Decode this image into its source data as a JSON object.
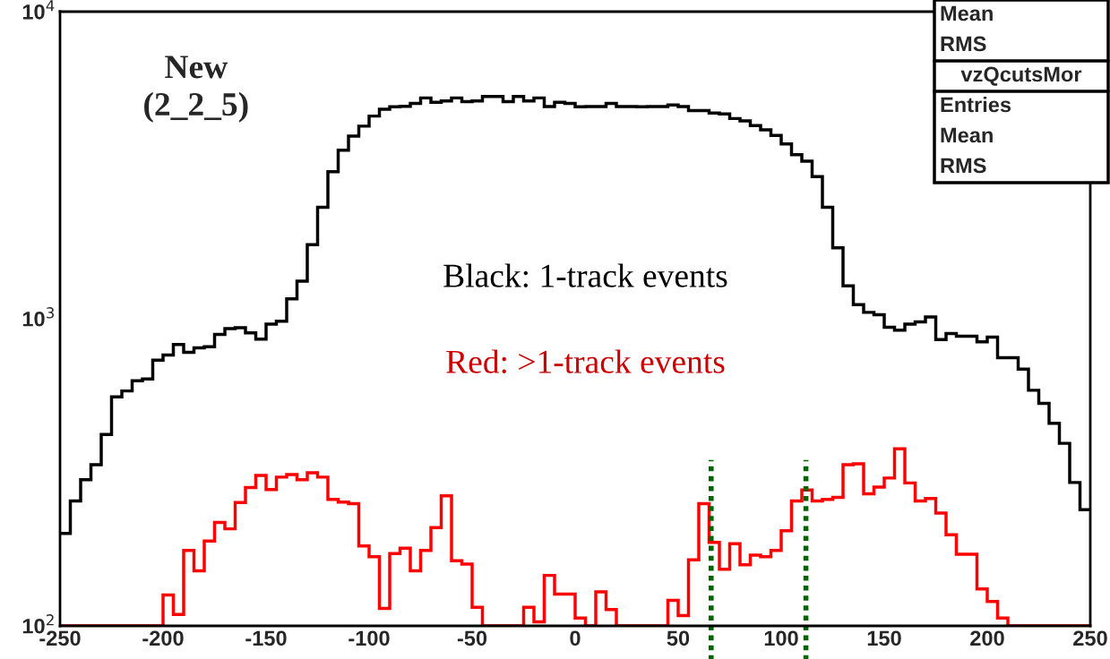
{
  "chart_data": {
    "type": "histogram",
    "bins": [
      -250,
      -245,
      -240,
      -235,
      -230,
      -225,
      -220,
      -215,
      -210,
      -205,
      -200,
      -195,
      -190,
      -185,
      -180,
      -175,
      -170,
      -165,
      -160,
      -155,
      -150,
      -145,
      -140,
      -135,
      -130,
      -125,
      -120,
      -115,
      -110,
      -105,
      -100,
      -95,
      -90,
      -85,
      -80,
      -75,
      -70,
      -65,
      -60,
      -55,
      -50,
      -45,
      -40,
      -35,
      -30,
      -25,
      -20,
      -15,
      -10,
      -5,
      0,
      5,
      10,
      15,
      20,
      25,
      30,
      35,
      40,
      45,
      50,
      55,
      60,
      65,
      70,
      75,
      80,
      85,
      90,
      95,
      100,
      105,
      110,
      115,
      120,
      125,
      130,
      135,
      140,
      145,
      150,
      155,
      160,
      165,
      170,
      175,
      180,
      185,
      190,
      195,
      200,
      205,
      210,
      215,
      220,
      225,
      230,
      235,
      240,
      245,
      250
    ],
    "series": [
      {
        "color": "#000000",
        "values": [
          200,
          255,
          299,
          335,
          420,
          557,
          582,
          628,
          637,
          733,
          762,
          824,
          777,
          804,
          811,
          889,
          929,
          935,
          899,
          859,
          961,
          982,
          1161,
          1325,
          1742,
          2307,
          3010,
          3540,
          3936,
          4238,
          4571,
          4808,
          4898,
          4920,
          5023,
          5236,
          5070,
          5117,
          5236,
          5093,
          5117,
          5297,
          5297,
          5093,
          5297,
          5117,
          5236,
          4909,
          5070,
          5023,
          4898,
          4909,
          4909,
          5023,
          4909,
          4909,
          4898,
          4909,
          4909,
          4966,
          4909,
          4764,
          4764,
          4677,
          4645,
          4487,
          4406,
          4256,
          4121,
          3954,
          3707,
          3420,
          3258,
          2904,
          2307,
          1702,
          1280,
          1112,
          1049,
          1030,
          938,
          918,
          961,
          977,
          1014,
          855,
          895,
          877,
          877,
          841,
          871,
          747,
          747,
          685,
          585,
          530,
          457,
          393,
          293,
          239
        ]
      },
      {
        "color": "#ff0000",
        "values": [
          100,
          100,
          100,
          100,
          100,
          100,
          100,
          100,
          100,
          100,
          126,
          109,
          176,
          151,
          189,
          217,
          207,
          252,
          282,
          309,
          278,
          305,
          311,
          299,
          315,
          305,
          258,
          253,
          250,
          182,
          168,
          114,
          172,
          179,
          151,
          176,
          209,
          265,
          163,
          159,
          115,
          100,
          100,
          100,
          100,
          115,
          103,
          146,
          127,
          127,
          106,
          100,
          129,
          113,
          100,
          100,
          100,
          100,
          100,
          121,
          108,
          164,
          250,
          187,
          153,
          185,
          158,
          170,
          168,
          176,
          204,
          255,
          277,
          255,
          258,
          262,
          335,
          337,
          269,
          283,
          303,
          377,
          292,
          255,
          260,
          233,
          198,
          171,
          171,
          132,
          120,
          106,
          100,
          100,
          100,
          100,
          100,
          100,
          100,
          100
        ]
      }
    ],
    "xlim": [
      -250,
      250
    ],
    "xticks": [
      -250,
      -200,
      -150,
      -100,
      -50,
      0,
      50,
      100,
      150,
      200,
      250
    ],
    "log": true,
    "ylim": [
      100,
      10000
    ],
    "yticks": [
      {
        "value": 100,
        "label": "10$^{2}$"
      },
      {
        "value": 1000,
        "label": "10$^{3}$"
      },
      {
        "value": 10000,
        "label": "10$^{4}$"
      }
    ],
    "ref_lines": [
      {
        "axis": "x",
        "value": 66,
        "color": "#006400",
        "line_style": "dotted"
      },
      {
        "axis": "x",
        "value": 112,
        "color": "#006400",
        "line_style": "dotted"
      }
    ],
    "annotations": [
      "New\n(2_2_5)",
      "Black: 1-track events",
      "Red: >1-track events",
      "Mean",
      "RMS",
      "vzQcutsMor",
      "Entries",
      "Mean",
      "RMS"
    ],
    "grid": false
  }
}
